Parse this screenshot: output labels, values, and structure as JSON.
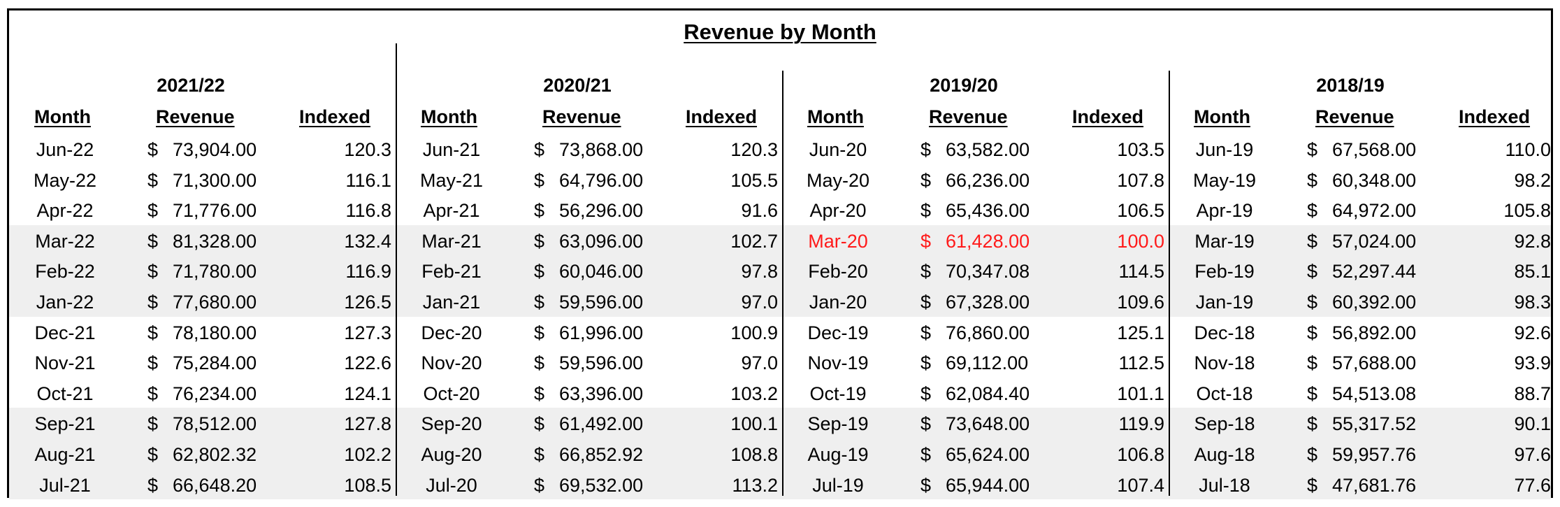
{
  "title": "Revenue by Month",
  "headers": {
    "month": "Month",
    "revenue": "Revenue",
    "indexed": "Indexed"
  },
  "currency_symbol": "$",
  "highlight_color": "#ff1a1a",
  "band_color": "#efefef",
  "years": [
    {
      "label": "2021/22",
      "rows": [
        {
          "month": "Jun-22",
          "revenue": "73,904.00",
          "indexed": "120.3"
        },
        {
          "month": "May-22",
          "revenue": "71,300.00",
          "indexed": "116.1"
        },
        {
          "month": "Apr-22",
          "revenue": "71,776.00",
          "indexed": "116.8"
        },
        {
          "month": "Mar-22",
          "revenue": "81,328.00",
          "indexed": "132.4"
        },
        {
          "month": "Feb-22",
          "revenue": "71,780.00",
          "indexed": "116.9"
        },
        {
          "month": "Jan-22",
          "revenue": "77,680.00",
          "indexed": "126.5"
        },
        {
          "month": "Dec-21",
          "revenue": "78,180.00",
          "indexed": "127.3"
        },
        {
          "month": "Nov-21",
          "revenue": "75,284.00",
          "indexed": "122.6"
        },
        {
          "month": "Oct-21",
          "revenue": "76,234.00",
          "indexed": "124.1"
        },
        {
          "month": "Sep-21",
          "revenue": "78,512.00",
          "indexed": "127.8"
        },
        {
          "month": "Aug-21",
          "revenue": "62,802.32",
          "indexed": "102.2"
        },
        {
          "month": "Jul-21",
          "revenue": "66,648.20",
          "indexed": "108.5"
        }
      ]
    },
    {
      "label": "2020/21",
      "rows": [
        {
          "month": "Jun-21",
          "revenue": "73,868.00",
          "indexed": "120.3"
        },
        {
          "month": "May-21",
          "revenue": "64,796.00",
          "indexed": "105.5"
        },
        {
          "month": "Apr-21",
          "revenue": "56,296.00",
          "indexed": "91.6"
        },
        {
          "month": "Mar-21",
          "revenue": "63,096.00",
          "indexed": "102.7"
        },
        {
          "month": "Feb-21",
          "revenue": "60,046.00",
          "indexed": "97.8"
        },
        {
          "month": "Jan-21",
          "revenue": "59,596.00",
          "indexed": "97.0"
        },
        {
          "month": "Dec-20",
          "revenue": "61,996.00",
          "indexed": "100.9"
        },
        {
          "month": "Nov-20",
          "revenue": "59,596.00",
          "indexed": "97.0"
        },
        {
          "month": "Oct-20",
          "revenue": "63,396.00",
          "indexed": "103.2"
        },
        {
          "month": "Sep-20",
          "revenue": "61,492.00",
          "indexed": "100.1"
        },
        {
          "month": "Aug-20",
          "revenue": "66,852.92",
          "indexed": "108.8"
        },
        {
          "month": "Jul-20",
          "revenue": "69,532.00",
          "indexed": "113.2"
        }
      ]
    },
    {
      "label": "2019/20",
      "rows": [
        {
          "month": "Jun-20",
          "revenue": "63,582.00",
          "indexed": "103.5"
        },
        {
          "month": "May-20",
          "revenue": "66,236.00",
          "indexed": "107.8"
        },
        {
          "month": "Apr-20",
          "revenue": "65,436.00",
          "indexed": "106.5"
        },
        {
          "month": "Mar-20",
          "revenue": "61,428.00",
          "indexed": "100.0",
          "highlight": true
        },
        {
          "month": "Feb-20",
          "revenue": "70,347.08",
          "indexed": "114.5"
        },
        {
          "month": "Jan-20",
          "revenue": "67,328.00",
          "indexed": "109.6"
        },
        {
          "month": "Dec-19",
          "revenue": "76,860.00",
          "indexed": "125.1"
        },
        {
          "month": "Nov-19",
          "revenue": "69,112.00",
          "indexed": "112.5"
        },
        {
          "month": "Oct-19",
          "revenue": "62,084.40",
          "indexed": "101.1"
        },
        {
          "month": "Sep-19",
          "revenue": "73,648.00",
          "indexed": "119.9"
        },
        {
          "month": "Aug-19",
          "revenue": "65,624.00",
          "indexed": "106.8"
        },
        {
          "month": "Jul-19",
          "revenue": "65,944.00",
          "indexed": "107.4"
        }
      ]
    },
    {
      "label": "2018/19",
      "rows": [
        {
          "month": "Jun-19",
          "revenue": "67,568.00",
          "indexed": "110.0"
        },
        {
          "month": "May-19",
          "revenue": "60,348.00",
          "indexed": "98.2"
        },
        {
          "month": "Apr-19",
          "revenue": "64,972.00",
          "indexed": "105.8"
        },
        {
          "month": "Mar-19",
          "revenue": "57,024.00",
          "indexed": "92.8"
        },
        {
          "month": "Feb-19",
          "revenue": "52,297.44",
          "indexed": "85.1"
        },
        {
          "month": "Jan-19",
          "revenue": "60,392.00",
          "indexed": "98.3"
        },
        {
          "month": "Dec-18",
          "revenue": "56,892.00",
          "indexed": "92.6"
        },
        {
          "month": "Nov-18",
          "revenue": "57,688.00",
          "indexed": "93.9"
        },
        {
          "month": "Oct-18",
          "revenue": "54,513.08",
          "indexed": "88.7"
        },
        {
          "month": "Sep-18",
          "revenue": "55,317.52",
          "indexed": "90.1"
        },
        {
          "month": "Aug-18",
          "revenue": "59,957.76",
          "indexed": "97.6"
        },
        {
          "month": "Jul-18",
          "revenue": "47,681.76",
          "indexed": "77.6"
        }
      ]
    }
  ]
}
